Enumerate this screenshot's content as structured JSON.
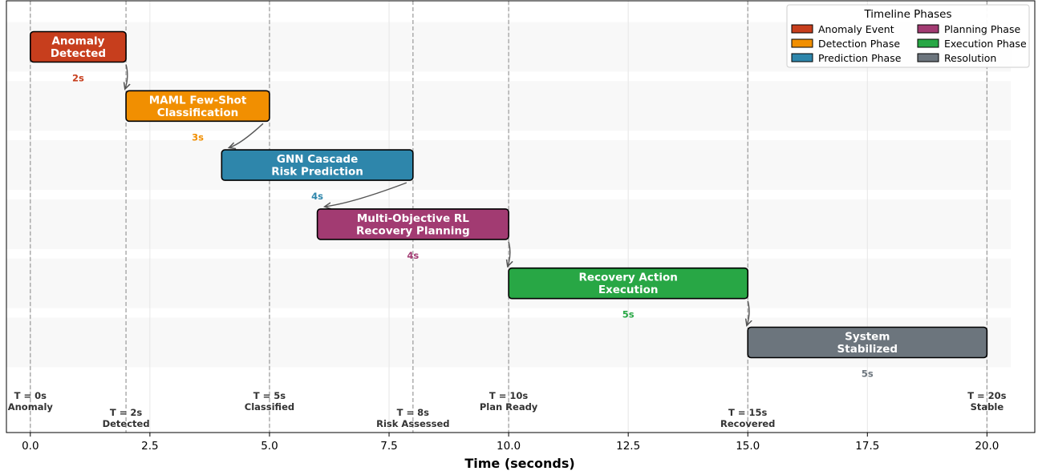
{
  "chart_data": {
    "type": "timeline",
    "xlabel": "Time (seconds)",
    "xlim": [
      -0.5,
      21.0
    ],
    "xticks": [
      "0.0",
      "2.5",
      "5.0",
      "7.5",
      "10.0",
      "12.5",
      "15.0",
      "17.5",
      "20.0"
    ],
    "xtick_values": [
      0,
      2.5,
      5,
      7.5,
      10,
      12.5,
      15,
      17.5,
      20
    ],
    "grid": true,
    "phases": [
      {
        "label_lines": [
          "Anomaly",
          "Detected"
        ],
        "start": 0,
        "end": 2,
        "duration_label": "2s",
        "phase": "Anomaly Event",
        "color": "#c73e1d"
      },
      {
        "label_lines": [
          "MAML Few-Shot",
          "Classification"
        ],
        "start": 2,
        "end": 5,
        "duration_label": "3s",
        "phase": "Detection Phase",
        "color": "#f18f01"
      },
      {
        "label_lines": [
          "GNN Cascade",
          "Risk Prediction"
        ],
        "start": 4,
        "end": 8,
        "duration_label": "4s",
        "phase": "Prediction Phase",
        "color": "#2e86ab"
      },
      {
        "label_lines": [
          "Multi-Objective RL",
          "Recovery Planning"
        ],
        "start": 6,
        "end": 10,
        "duration_label": "4s",
        "phase": "Planning Phase",
        "color": "#a23b72"
      },
      {
        "label_lines": [
          "Recovery Action",
          "Execution"
        ],
        "start": 10,
        "end": 15,
        "duration_label": "5s",
        "phase": "Execution Phase",
        "color": "#28a745"
      },
      {
        "label_lines": [
          "System",
          "Stabilized"
        ],
        "start": 15,
        "end": 20,
        "duration_label": "5s",
        "phase": "Resolution",
        "color": "#6c757d"
      }
    ],
    "milestones": [
      {
        "t": 0,
        "time_label": "T = 0s",
        "event": "Anomaly",
        "row": "high"
      },
      {
        "t": 2,
        "time_label": "T = 2s",
        "event": "Detected",
        "row": "low"
      },
      {
        "t": 5,
        "time_label": "T = 5s",
        "event": "Classified",
        "row": "high"
      },
      {
        "t": 8,
        "time_label": "T = 8s",
        "event": "Risk Assessed",
        "row": "low"
      },
      {
        "t": 10,
        "time_label": "T = 10s",
        "event": "Plan Ready",
        "row": "high"
      },
      {
        "t": 15,
        "time_label": "T = 15s",
        "event": "Recovered",
        "row": "low"
      },
      {
        "t": 20,
        "time_label": "T = 20s",
        "event": "Stable",
        "row": "high"
      }
    ],
    "legend": {
      "title": "Timeline Phases",
      "placement": "top-right",
      "entries": [
        {
          "label": "Anomaly Event",
          "color": "#c73e1d"
        },
        {
          "label": "Planning Phase",
          "color": "#a23b72"
        },
        {
          "label": "Detection Phase",
          "color": "#f18f01"
        },
        {
          "label": "Execution Phase",
          "color": "#28a745"
        },
        {
          "label": "Prediction Phase",
          "color": "#2e86ab"
        },
        {
          "label": "Resolution",
          "color": "#6c757d"
        }
      ]
    }
  }
}
